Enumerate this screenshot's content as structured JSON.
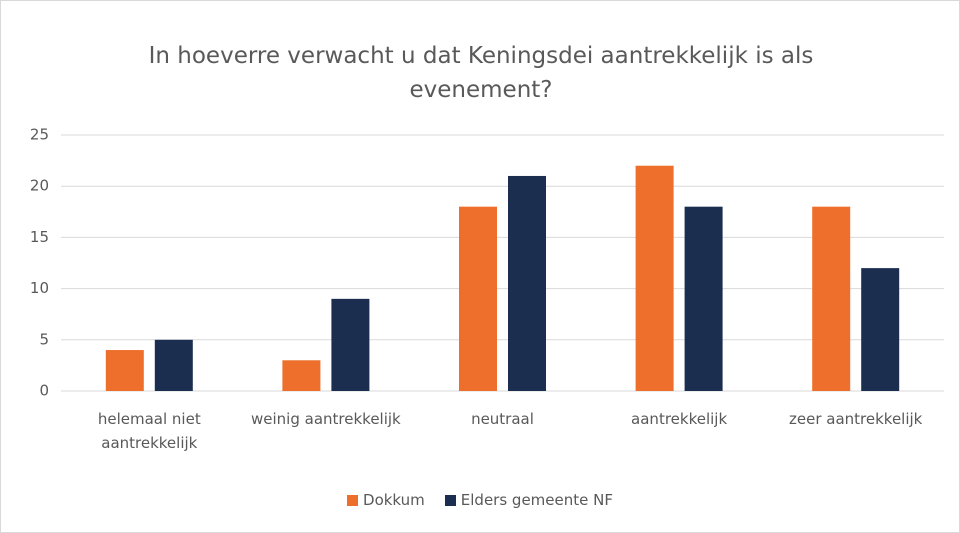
{
  "chart_data": {
    "type": "bar",
    "title": "In hoeverre verwacht u dat Keningsdei aantrekkelijk is als evenement?",
    "categories": [
      "helemaal niet aantrekkelijk",
      "weinig aantrekkelijk",
      "neutraal",
      "aantrekkelijk",
      "zeer aantrekkelijk"
    ],
    "series": [
      {
        "name": "Dokkum",
        "color": "#ee6f2b",
        "values": [
          4,
          3,
          18,
          22,
          18
        ]
      },
      {
        "name": "Elders gemeente NF",
        "color": "#1c2e50",
        "values": [
          5,
          9,
          21,
          18,
          12
        ]
      }
    ],
    "ylim": [
      0,
      25
    ],
    "yticks": [
      0,
      5,
      10,
      15,
      20,
      25
    ],
    "grid": true,
    "legend": "bottom"
  }
}
